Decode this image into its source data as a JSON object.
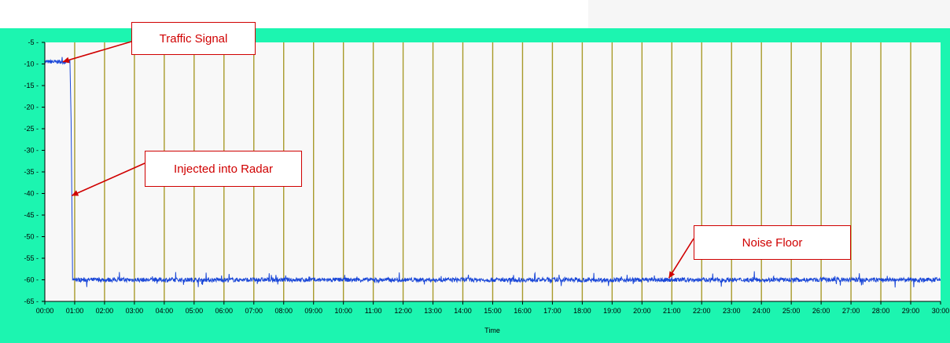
{
  "chart_data": {
    "type": "line",
    "title": "",
    "xlabel": "Time",
    "ylabel": "",
    "x_tick_labels": [
      "00:00",
      "01:00",
      "02:00",
      "03:00",
      "04:00",
      "05:00",
      "06:00",
      "07:00",
      "08:00",
      "09:00",
      "10:00",
      "11:00",
      "12:00",
      "13:00",
      "14:00",
      "15:00",
      "16:00",
      "17:00",
      "18:00",
      "19:00",
      "20:00",
      "21:00",
      "22:00",
      "23:00",
      "24:00",
      "25:00",
      "26:00",
      "27:00",
      "28:00",
      "29:00",
      "30:00"
    ],
    "y_tick_labels": [
      "-5",
      "-10",
      "-15",
      "-20",
      "-25",
      "-30",
      "-35",
      "-40",
      "-45",
      "-50",
      "-55",
      "-60",
      "-65"
    ],
    "xlim_minutes": [
      0,
      30
    ],
    "ylim": [
      -65,
      -5
    ],
    "grid": "vertical",
    "series": [
      {
        "values_summary": [
          {
            "from_minute": 0.0,
            "to_minute": 0.85,
            "level": -9.5
          },
          {
            "minute": 0.88,
            "level": -23
          },
          {
            "minute": 0.92,
            "level": -51
          },
          {
            "from_minute": 0.95,
            "to_minute": 30.0,
            "level": -60
          }
        ]
      }
    ],
    "annotations": [
      {
        "text": "Traffic Signal",
        "points_to_minute": 0.6,
        "points_to_value": -9.5
      },
      {
        "text": "Injected into Radar",
        "points_to_minute": 0.9,
        "points_to_value": -40.5
      },
      {
        "text": "Noise Floor",
        "points_to_minute": 20.9,
        "points_to_value": -59.6
      }
    ]
  },
  "colors": {
    "frame": "#1cf5b0",
    "plot_background": "#f8f8f8",
    "grid": "#a89a2a",
    "series": "#1a47d8",
    "annotation": "#d00000"
  }
}
